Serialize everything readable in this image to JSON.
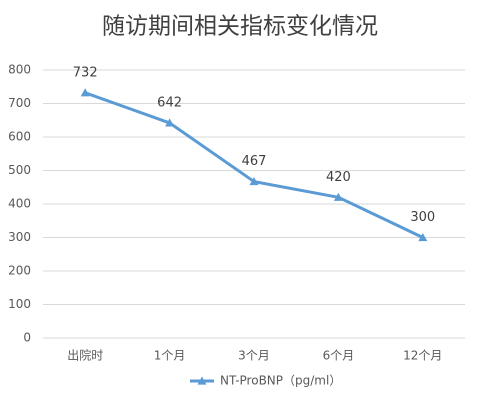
{
  "chart_data": {
    "type": "line",
    "title": "随访期间相关指标变化情况",
    "categories": [
      "出院时",
      "1个月",
      "3个月",
      "6个月",
      "12个月"
    ],
    "series": [
      {
        "name": "NT-ProBNP（pg/ml）",
        "color": "#5b9bd5",
        "values": [
          732,
          642,
          467,
          420,
          300
        ]
      }
    ],
    "ylim": [
      0,
      800
    ],
    "yticks": [
      0,
      100,
      200,
      300,
      400,
      500,
      600,
      700,
      800
    ],
    "grid": true,
    "legend": "bottom",
    "data_labels": true
  }
}
